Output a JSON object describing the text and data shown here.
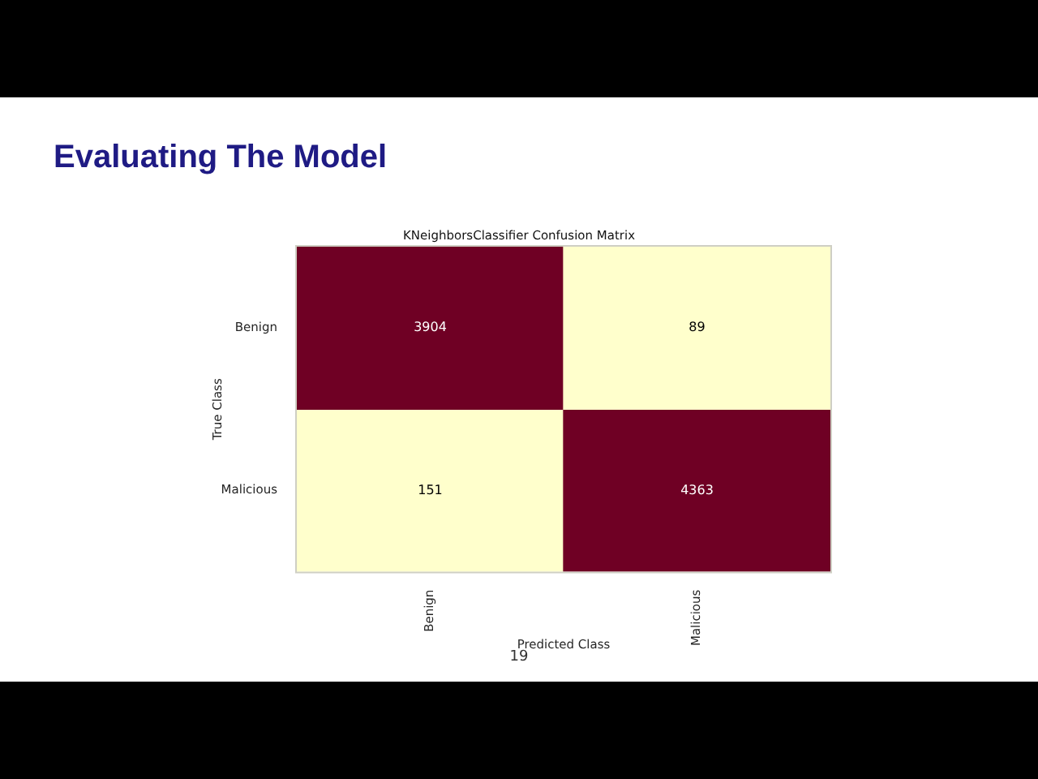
{
  "chart_data": {
    "type": "heatmap",
    "title": "Evaluating The Model",
    "subtitle": "KNeighborsClassifier Confusion Matrix",
    "xlabel": "Predicted Class",
    "ylabel": "True Class",
    "categories": [
      "Benign",
      "Malicious"
    ],
    "y_categories": [
      "Benign",
      "Malicious"
    ],
    "cells": [
      [
        3904,
        89
      ],
      [
        151,
        4363
      ]
    ],
    "colors": [
      [
        "#6f0024",
        "#ffffcc"
      ],
      [
        "#ffffcc",
        "#6f0024"
      ]
    ],
    "data_labels": true,
    "grid": false,
    "annotations": [
      "19"
    ]
  }
}
